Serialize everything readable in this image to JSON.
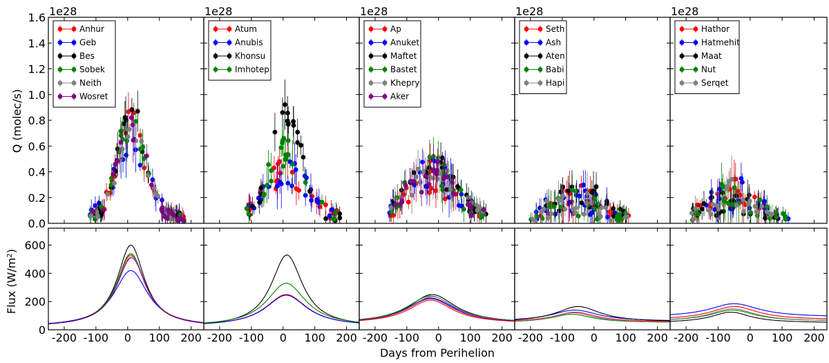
{
  "chart_data": {
    "type": "scatter",
    "xlabel": "Days from Perihelion",
    "top_ylabel": "Q (molec/s)",
    "bottom_ylabel": "Flux (W/m",
    "bottom_ylabel_sup": "2",
    "bottom_ylabel_close": ")",
    "sci_label": "1e28",
    "xlim": [
      -250,
      240
    ],
    "top_ylim": [
      0,
      1.6
    ],
    "bottom_ylim": [
      0,
      720
    ],
    "x_ticks": [
      -200,
      -100,
      0,
      100,
      200
    ],
    "top_y_ticks": [
      0.0,
      0.2,
      0.4,
      0.6,
      0.8,
      1.0,
      1.2,
      1.4,
      1.6
    ],
    "top_y_tick_labels": [
      "0.0",
      "0.2",
      "0.4",
      "0.6",
      "0.8",
      "1.0",
      "1.2",
      "1.4",
      "1.6"
    ],
    "bottom_y_ticks": [
      0,
      200,
      400,
      600
    ],
    "bottom_y_tick_labels": [
      "0",
      "200",
      "400",
      "600"
    ],
    "colors": [
      "#ff0000",
      "#0000ff",
      "#000000",
      "#008000",
      "#808080",
      "#800080"
    ],
    "panels": [
      {
        "series": [
          "Anhur",
          "Geb",
          "Bes",
          "Sobek",
          "Neith",
          "Wosret"
        ],
        "flux": [
          {
            "name": "Anhur",
            "peak_day": 10,
            "peak": 530,
            "width": 55,
            "base": 20
          },
          {
            "name": "Geb",
            "peak_day": 10,
            "peak": 420,
            "width": 65,
            "base": 22
          },
          {
            "name": "Bes",
            "peak_day": 10,
            "peak": 600,
            "width": 52,
            "base": 20
          },
          {
            "name": "Sobek",
            "peak_day": 10,
            "peak": 540,
            "width": 55,
            "base": 20
          },
          {
            "name": "Neith",
            "peak_day": 12,
            "peak": 520,
            "width": 56,
            "base": 20
          },
          {
            "name": "Wosret",
            "peak_day": 12,
            "peak": 510,
            "width": 57,
            "base": 20
          }
        ]
      },
      {
        "series": [
          "Atum",
          "Anubis",
          "Khonsu",
          "Imhotep"
        ],
        "flux": [
          {
            "name": "Atum",
            "peak_day": 10,
            "peak": 250,
            "width": 80,
            "base": 25
          },
          {
            "name": "Anubis",
            "peak_day": 10,
            "peak": 245,
            "width": 80,
            "base": 25
          },
          {
            "name": "Khonsu",
            "peak_day": 12,
            "peak": 530,
            "width": 60,
            "base": 20
          },
          {
            "name": "Imhotep",
            "peak_day": 10,
            "peak": 330,
            "width": 75,
            "base": 25
          }
        ]
      },
      {
        "series": [
          "Ap",
          "Anuket",
          "Maftet",
          "Bastet",
          "Khepry",
          "Aker"
        ],
        "flux": [
          {
            "name": "Ap",
            "peak_day": -25,
            "peak": 210,
            "width": 85,
            "base": 45
          },
          {
            "name": "Anuket",
            "peak_day": -25,
            "peak": 225,
            "width": 95,
            "base": 45
          },
          {
            "name": "Maftet",
            "peak_day": -20,
            "peak": 250,
            "width": 90,
            "base": 45
          },
          {
            "name": "Bastet",
            "peak_day": -25,
            "peak": 240,
            "width": 92,
            "base": 45
          },
          {
            "name": "Khepry",
            "peak_day": -20,
            "peak": 235,
            "width": 90,
            "base": 45
          },
          {
            "name": "Aker",
            "peak_day": -25,
            "peak": 220,
            "width": 90,
            "base": 45
          }
        ]
      },
      {
        "series": [
          "Seth",
          "Ash",
          "Aten",
          "Babi",
          "Hapi"
        ],
        "flux": [
          {
            "name": "Seth",
            "peak_day": -60,
            "peak": 125,
            "width": 80,
            "base": 55
          },
          {
            "name": "Ash",
            "peak_day": -60,
            "peak": 140,
            "width": 90,
            "base": 60
          },
          {
            "name": "Aten",
            "peak_day": -50,
            "peak": 165,
            "width": 85,
            "base": 55
          },
          {
            "name": "Babi",
            "peak_day": -70,
            "peak": 110,
            "width": 80,
            "base": 50
          },
          {
            "name": "Hapi",
            "peak_day": -65,
            "peak": 120,
            "width": 80,
            "base": 50
          }
        ]
      },
      {
        "series": [
          "Hathor",
          "Hatmehit",
          "Maat",
          "Nut",
          "Serqet"
        ],
        "flux": [
          {
            "name": "Hathor",
            "peak_day": -50,
            "peak": 165,
            "width": 90,
            "base": 70
          },
          {
            "name": "Hatmehit",
            "peak_day": -50,
            "peak": 185,
            "width": 95,
            "base": 90
          },
          {
            "name": "Maat",
            "peak_day": -60,
            "peak": 125,
            "width": 75,
            "base": 50
          },
          {
            "name": "Nut",
            "peak_day": -55,
            "peak": 140,
            "width": 85,
            "base": 60
          },
          {
            "name": "Serqet",
            "peak_day": -55,
            "peak": 150,
            "width": 85,
            "base": 60
          }
        ]
      }
    ]
  }
}
